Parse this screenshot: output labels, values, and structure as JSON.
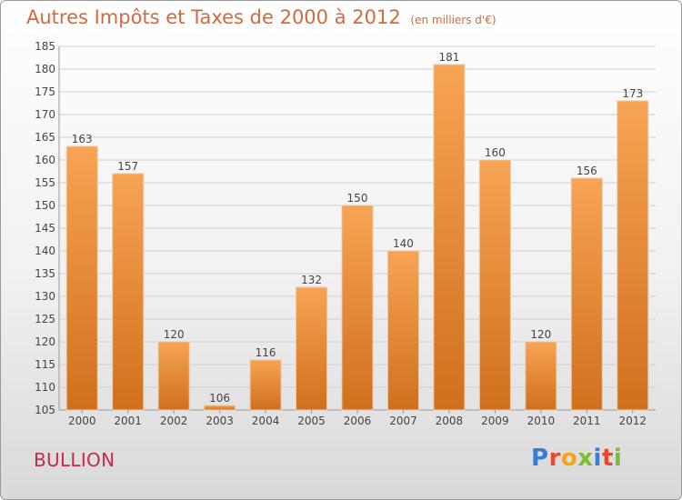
{
  "chart_data": {
    "type": "bar",
    "title": "Autres Impôts et Taxes de 2000 à 2012",
    "subtitle": "(en milliers d'€)",
    "categories": [
      "2000",
      "2001",
      "2002",
      "2003",
      "2004",
      "2005",
      "2006",
      "2007",
      "2008",
      "2009",
      "2010",
      "2011",
      "2012"
    ],
    "values": [
      163,
      157,
      120,
      106,
      116,
      132,
      150,
      140,
      181,
      160,
      120,
      156,
      173
    ],
    "ylim": [
      105,
      185
    ],
    "yticks": [
      105,
      110,
      115,
      120,
      125,
      130,
      135,
      140,
      145,
      150,
      155,
      160,
      165,
      170,
      175,
      180,
      185
    ],
    "grid": true,
    "bar_color": "#f0923e"
  },
  "footer": {
    "city": "BULLION",
    "logo_text": "Proxiti"
  },
  "colors": {
    "title": "#d4693a",
    "city": "#c6294e",
    "logo": [
      "#3a7bd5",
      "#e8492d",
      "#f7a21b",
      "#7cbd35",
      "#3a7bd5",
      "#e8492d",
      "#7cbd35"
    ]
  }
}
